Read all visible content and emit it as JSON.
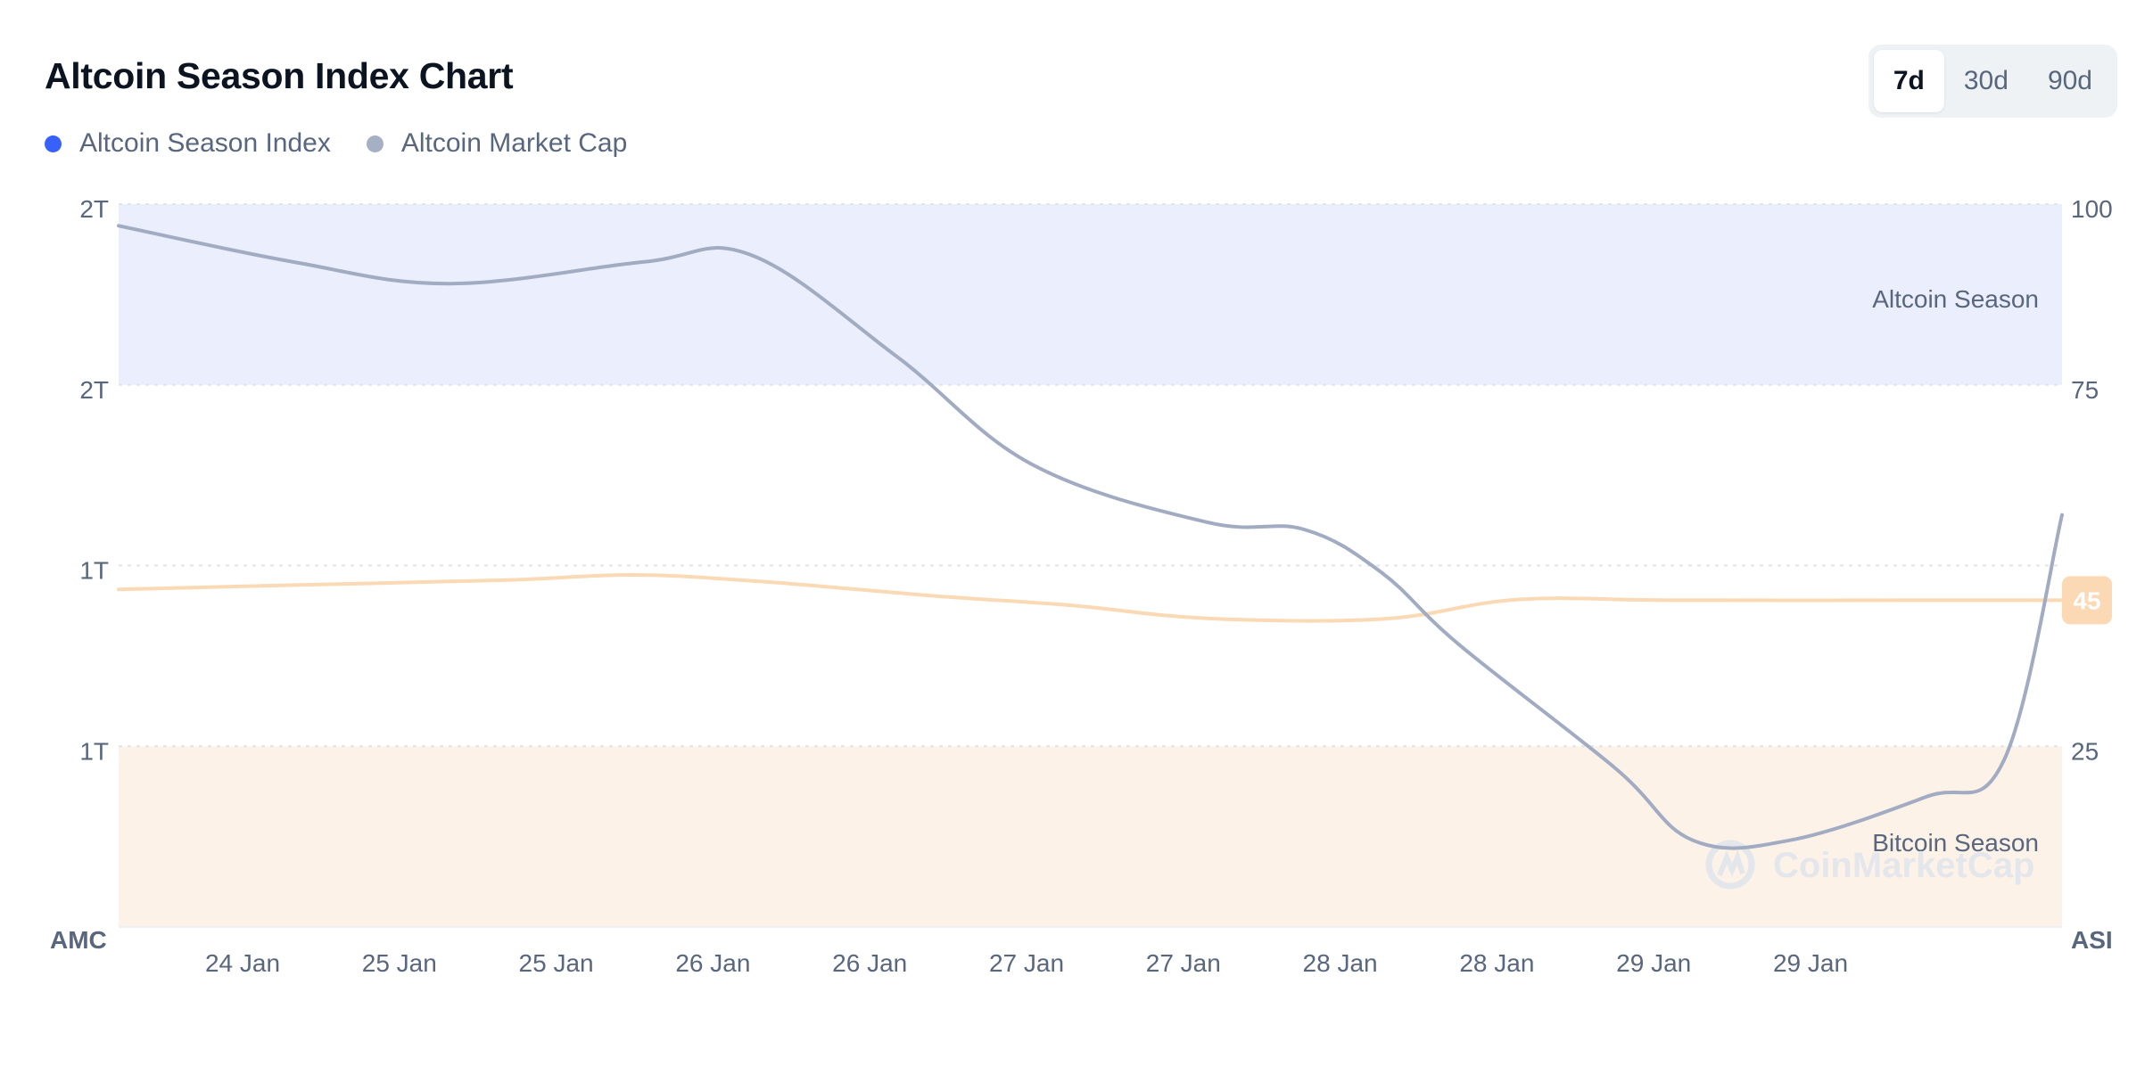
{
  "header": {
    "title": "Altcoin Season Index Chart"
  },
  "legend": {
    "items": [
      {
        "label": "Altcoin Season Index",
        "color": "#3861fb"
      },
      {
        "label": "Altcoin Market Cap",
        "color": "#a6b0c3"
      }
    ]
  },
  "range_buttons": [
    {
      "label": "7d",
      "active": true
    },
    {
      "label": "30d",
      "active": false
    },
    {
      "label": "90d",
      "active": false
    }
  ],
  "colors": {
    "altcoin_zone": "#eaeefd",
    "bitcoin_zone": "#fdf2e8",
    "index_line": "#fad9b4",
    "market_cap_line": "#a1abc2",
    "badge": "#fad9b4"
  },
  "watermark": {
    "text": "CoinMarketCap",
    "icon": "coinmarketcap-logo-icon"
  },
  "chart_data": {
    "type": "line",
    "title": "Altcoin Season Index Chart",
    "x_ticks": [
      "24 Jan",
      "25 Jan",
      "25 Jan",
      "26 Jan",
      "26 Jan",
      "27 Jan",
      "27 Jan",
      "28 Jan",
      "28 Jan",
      "29 Jan",
      "29 Jan"
    ],
    "x_range": [
      0,
      1
    ],
    "left_axis": {
      "title": "AMC",
      "tick_labels": [
        "2T",
        "2T",
        "1T",
        "1T"
      ],
      "tick_fractions": [
        1.0,
        0.75,
        0.5,
        0.25
      ]
    },
    "right_axis": {
      "title": "ASI",
      "ticks": [
        100,
        75,
        25
      ],
      "range": [
        0,
        100
      ]
    },
    "zones": [
      {
        "label": "Altcoin Season",
        "from": 75,
        "to": 100
      },
      {
        "label": "Bitcoin Season",
        "from": 0,
        "to": 25
      }
    ],
    "current_index_badge": "45",
    "series": [
      {
        "name": "Altcoin Season Index",
        "axis": "right",
        "x": [
          0,
          0.09,
          0.2,
          0.265,
          0.33,
          0.42,
          0.49,
          0.56,
          0.65,
          0.72,
          0.8,
          0.93,
          1.0
        ],
        "values": [
          46.7,
          47.3,
          48.0,
          48.7,
          47.8,
          45.8,
          44.5,
          42.7,
          42.6,
          45.3,
          45.2,
          45.2,
          45.2
        ]
      },
      {
        "name": "Altcoin Market Cap",
        "axis": "left",
        "x": [
          0,
          0.09,
          0.17,
          0.27,
          0.325,
          0.4,
          0.47,
          0.56,
          0.61,
          0.65,
          0.69,
          0.77,
          0.81,
          0.86,
          0.93,
          0.97,
          1.0
        ],
        "values": [
          0.97,
          0.92,
          0.89,
          0.92,
          0.93,
          0.79,
          0.64,
          0.56,
          0.55,
          0.49,
          0.39,
          0.22,
          0.12,
          0.12,
          0.18,
          0.23,
          0.57
        ]
      }
    ]
  }
}
